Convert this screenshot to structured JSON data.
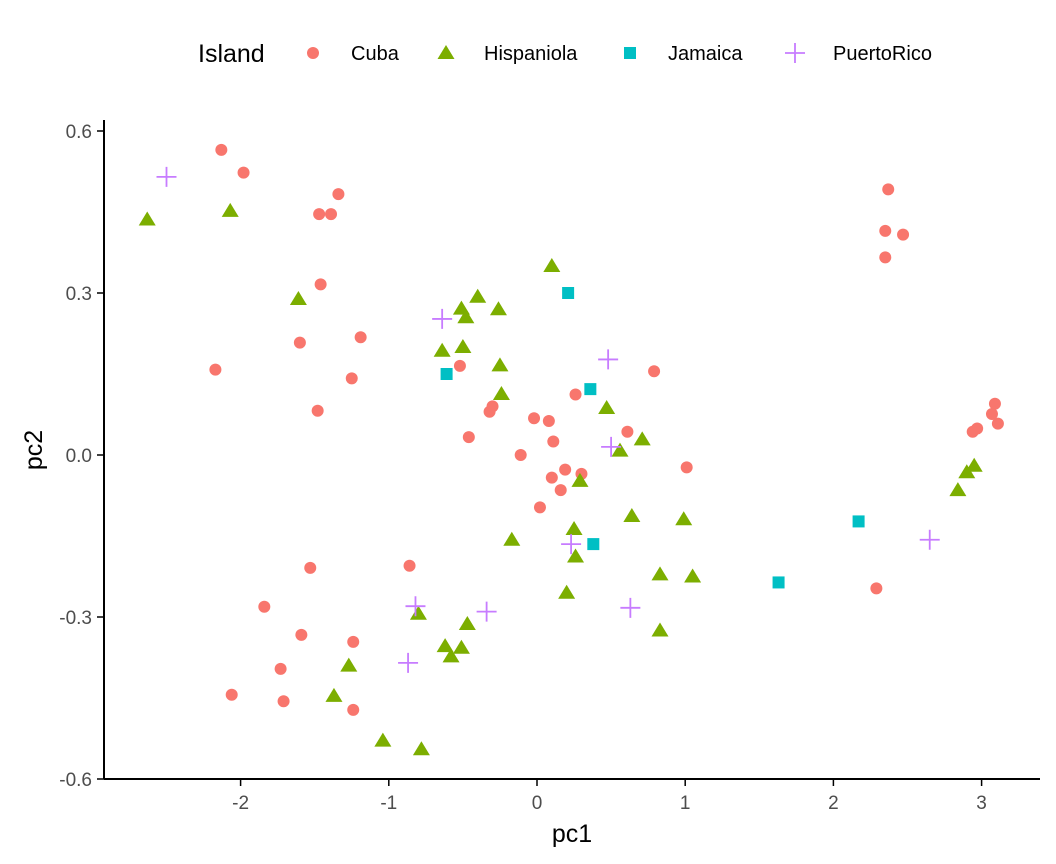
{
  "chart_data": {
    "type": "scatter",
    "xlabel": "pc1",
    "ylabel": "pc2",
    "xlim": [
      -2.9,
      3.4
    ],
    "ylim": [
      -0.6,
      0.62
    ],
    "x_ticks": [
      -2,
      -1,
      0,
      1,
      2,
      3
    ],
    "x_tick_labels": [
      "-2",
      "-1",
      "0",
      "1",
      "2",
      "3"
    ],
    "y_ticks": [
      -0.6,
      -0.3,
      0.0,
      0.3,
      0.6
    ],
    "y_tick_labels": [
      "-0.6",
      "-0.3",
      "0.0",
      "0.3",
      "0.6"
    ],
    "grid": false,
    "legend": {
      "title": "Island",
      "position": "top"
    },
    "series": [
      {
        "name": "Cuba",
        "shape": "circle",
        "color": "#F8766D",
        "points": [
          [
            -2.13,
            0.565
          ],
          [
            -1.98,
            0.523
          ],
          [
            -1.34,
            0.483
          ],
          [
            -1.47,
            0.446
          ],
          [
            -1.39,
            0.446
          ],
          [
            -1.46,
            0.316
          ],
          [
            -1.19,
            0.218
          ],
          [
            -1.6,
            0.208
          ],
          [
            -2.17,
            0.158
          ],
          [
            -1.25,
            0.142
          ],
          [
            -1.48,
            0.082
          ],
          [
            -0.52,
            0.165
          ],
          [
            -0.46,
            0.033
          ],
          [
            -0.32,
            0.08
          ],
          [
            -0.3,
            0.09
          ],
          [
            -0.02,
            0.068
          ],
          [
            0.08,
            0.063
          ],
          [
            -0.11,
            0.0
          ],
          [
            0.11,
            0.025
          ],
          [
            0.26,
            0.112
          ],
          [
            0.61,
            0.043
          ],
          [
            0.79,
            0.155
          ],
          [
            0.1,
            -0.042
          ],
          [
            0.19,
            -0.027
          ],
          [
            0.3,
            -0.035
          ],
          [
            0.16,
            -0.065
          ],
          [
            0.02,
            -0.097
          ],
          [
            1.01,
            -0.023
          ],
          [
            -1.84,
            -0.281
          ],
          [
            -1.53,
            -0.209
          ],
          [
            -0.86,
            -0.205
          ],
          [
            -1.59,
            -0.333
          ],
          [
            -1.73,
            -0.396
          ],
          [
            -1.24,
            -0.346
          ],
          [
            -2.06,
            -0.444
          ],
          [
            -1.71,
            -0.456
          ],
          [
            -1.24,
            -0.472
          ],
          [
            2.37,
            0.492
          ],
          [
            2.35,
            0.415
          ],
          [
            2.47,
            0.408
          ],
          [
            2.35,
            0.366
          ],
          [
            3.09,
            0.095
          ],
          [
            3.07,
            0.076
          ],
          [
            2.97,
            0.049
          ],
          [
            2.94,
            0.043
          ],
          [
            3.11,
            0.058
          ],
          [
            2.29,
            -0.247
          ]
        ]
      },
      {
        "name": "Hispaniola",
        "shape": "triangle",
        "color": "#7CAE00",
        "points": [
          [
            -2.63,
            0.436
          ],
          [
            -2.07,
            0.452
          ],
          [
            -1.61,
            0.289
          ],
          [
            0.1,
            0.35
          ],
          [
            -0.4,
            0.293
          ],
          [
            -0.51,
            0.271
          ],
          [
            -0.26,
            0.27
          ],
          [
            -0.48,
            0.255
          ],
          [
            -0.64,
            0.193
          ],
          [
            -0.5,
            0.2
          ],
          [
            -0.25,
            0.166
          ],
          [
            -0.24,
            0.113
          ],
          [
            0.47,
            0.087
          ],
          [
            0.71,
            0.029
          ],
          [
            0.56,
            0.008
          ],
          [
            0.29,
            -0.048
          ],
          [
            -0.17,
            -0.157
          ],
          [
            0.25,
            -0.137
          ],
          [
            0.26,
            -0.188
          ],
          [
            0.64,
            -0.113
          ],
          [
            0.99,
            -0.119
          ],
          [
            0.83,
            -0.221
          ],
          [
            1.05,
            -0.225
          ],
          [
            0.2,
            -0.255
          ],
          [
            0.83,
            -0.325
          ],
          [
            -0.8,
            -0.294
          ],
          [
            -0.47,
            -0.313
          ],
          [
            -0.62,
            -0.354
          ],
          [
            -0.51,
            -0.357
          ],
          [
            -0.58,
            -0.373
          ],
          [
            -1.27,
            -0.39
          ],
          [
            -1.37,
            -0.446
          ],
          [
            -1.04,
            -0.529
          ],
          [
            -0.78,
            -0.545
          ],
          [
            2.95,
            -0.02
          ],
          [
            2.9,
            -0.032
          ],
          [
            2.84,
            -0.065
          ]
        ]
      },
      {
        "name": "Jamaica",
        "shape": "square",
        "color": "#00BFC4",
        "points": [
          [
            0.21,
            0.3
          ],
          [
            -0.61,
            0.15
          ],
          [
            0.36,
            0.122
          ],
          [
            0.38,
            -0.165
          ],
          [
            1.63,
            -0.236
          ],
          [
            2.17,
            -0.123
          ]
        ]
      },
      {
        "name": "PuertoRico",
        "shape": "plus",
        "color": "#C77CFF",
        "points": [
          [
            -2.5,
            0.515
          ],
          [
            -0.64,
            0.252
          ],
          [
            0.48,
            0.177
          ],
          [
            0.5,
            0.015
          ],
          [
            0.23,
            -0.165
          ],
          [
            -0.82,
            -0.28
          ],
          [
            -0.34,
            -0.29
          ],
          [
            0.63,
            -0.283
          ],
          [
            -0.87,
            -0.385
          ],
          [
            2.65,
            -0.157
          ]
        ]
      }
    ]
  }
}
